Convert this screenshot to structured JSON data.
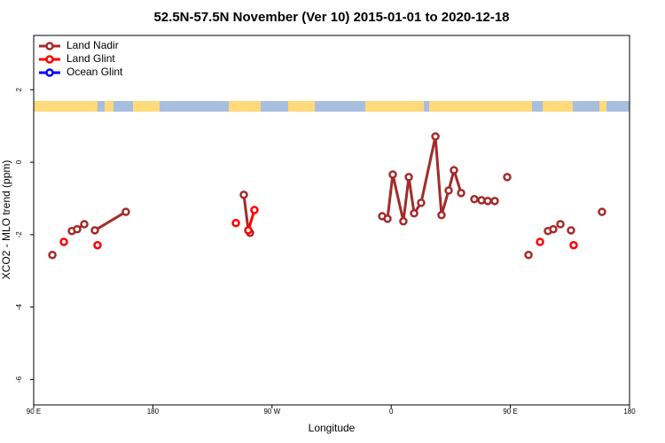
{
  "chart_data": {
    "type": "line",
    "title": "52.5N-57.5N November (Ver 10)   2015-01-01 to 2020-12-18",
    "x_label": "Longitude",
    "y_label": "XCO2 - MLO trend (ppm)",
    "xlim": [
      90,
      540
    ],
    "ylim": [
      -6.7,
      3.5
    ],
    "xticks": [
      {
        "value": 90,
        "label": "90 E"
      },
      180,
      {
        "value": 270,
        "label": "90 W"
      },
      {
        "value": 360,
        "label": "0"
      },
      {
        "value": 450,
        "label": "90 E"
      },
      {
        "value": 540,
        "label": "180"
      }
    ],
    "yticks": [
      -6,
      -4,
      -2,
      0,
      2
    ],
    "legend": "top-left",
    "series": [
      {
        "name": "Land Nadir",
        "color": "#a52a2a",
        "x": [
          104.1,
          null,
          118.8,
          122.8,
          128.2,
          null,
          136.2,
          159.6,
          null,
          248.7,
          252.1,
          253.4,
          null,
          353.2,
          357.2,
          361.2,
          369.2,
          373.3,
          377.3,
          382.6,
          393.4,
          398.0,
          403.4,
          407.4,
          412.8,
          null,
          422.8,
          428.2,
          432.9,
          438.2,
          null,
          447.6,
          null,
          463.7,
          null,
          478.4,
          null,
          482.4,
          null,
          487.8,
          null,
          495.8,
          null,
          519.2
        ],
        "values": [
          -2.56,
          null,
          -1.9,
          -1.85,
          -1.71,
          null,
          -1.88,
          -1.37,
          null,
          -0.9,
          -1.88,
          -1.95,
          null,
          -1.49,
          -1.56,
          -0.34,
          -1.63,
          -0.41,
          -1.41,
          -1.12,
          0.71,
          -1.46,
          -0.78,
          -0.22,
          -0.85,
          null,
          -1.02,
          -1.05,
          -1.07,
          -1.07,
          null,
          -0.41,
          null,
          -2.56,
          null,
          -1.9,
          null,
          -1.85,
          null,
          -1.71,
          null,
          -1.88,
          null,
          -1.37
        ]
      },
      {
        "name": "Land Glint",
        "color": "#ff0000",
        "x": [
          112.8,
          null,
          138.2,
          null,
          242.7,
          null,
          252.1,
          256.7,
          null,
          472.4,
          null,
          497.8
        ],
        "values": [
          -2.2,
          null,
          -2.29,
          null,
          -1.68,
          null,
          -1.88,
          -1.32,
          null,
          -2.2,
          null,
          -2.29
        ]
      },
      {
        "name": "Ocean Glint",
        "color": "#0000ff",
        "x": [],
        "values": []
      }
    ]
  }
}
